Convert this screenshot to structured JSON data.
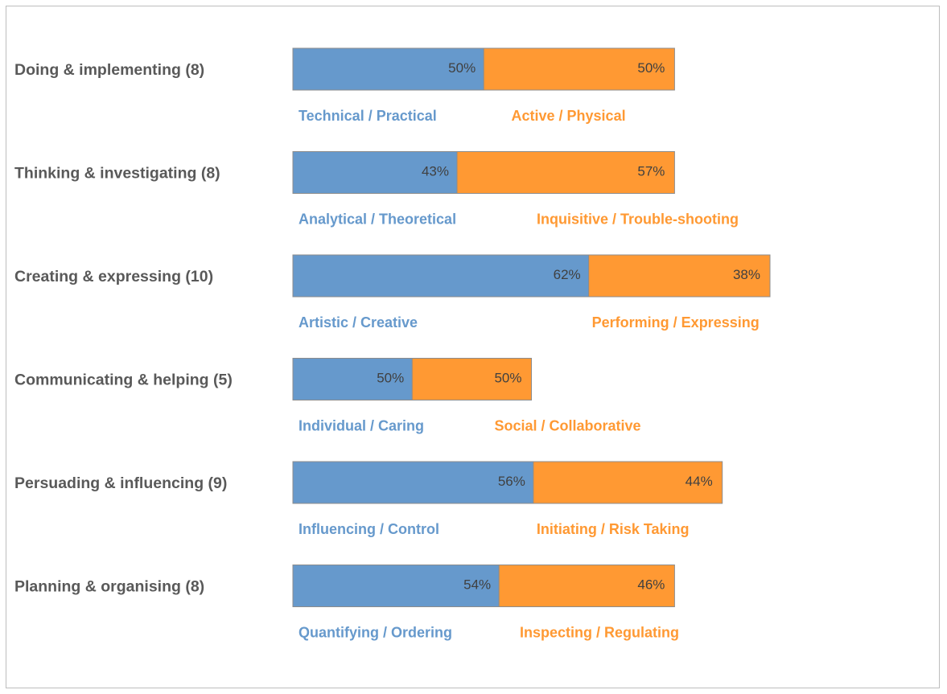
{
  "chart_data": {
    "type": "bar",
    "stacked": true,
    "orientation": "horizontal",
    "colors": {
      "left": "#6699cc",
      "right": "#ff9933",
      "category_text": "#595959",
      "value_text": "#404040",
      "bar_border": "#8c8c8c"
    },
    "rows": [
      {
        "category": "Doing & implementing (8)",
        "total": 8,
        "left": {
          "label": "Technical / Practical",
          "value_text": "50%",
          "value": 4
        },
        "right": {
          "label": "Active / Physical",
          "value_text": "50%",
          "value": 4
        }
      },
      {
        "category": "Thinking & investigating (8)",
        "total": 8,
        "left": {
          "label": "Analytical / Theoretical",
          "value_text": "43%",
          "value": 3.44
        },
        "right": {
          "label": "Inquisitive / Trouble-shooting",
          "value_text": "57%",
          "value": 4.56
        }
      },
      {
        "category": "Creating & expressing (10)",
        "total": 10,
        "left": {
          "label": "Artistic / Creative",
          "value_text": "62%",
          "value": 6.2
        },
        "right": {
          "label": "Performing / Expressing",
          "value_text": "38%",
          "value": 3.8
        }
      },
      {
        "category": "Communicating & helping (5)",
        "total": 5,
        "left": {
          "label": "Individual / Caring",
          "value_text": "50%",
          "value": 2.5
        },
        "right": {
          "label": "Social / Collaborative",
          "value_text": "50%",
          "value": 2.5
        }
      },
      {
        "category": "Persuading & influencing (9)",
        "total": 9,
        "left": {
          "label": "Influencing / Control",
          "value_text": "56%",
          "value": 5.04
        },
        "right": {
          "label": "Initiating / Risk Taking",
          "value_text": "44%",
          "value": 3.96
        }
      },
      {
        "category": "Planning & organising (8)",
        "total": 8,
        "left": {
          "label": "Quantifying / Ordering",
          "value_text": "54%",
          "value": 4.32
        },
        "right": {
          "label": "Inspecting / Regulating",
          "value_text": "46%",
          "value": 3.68
        }
      }
    ]
  }
}
